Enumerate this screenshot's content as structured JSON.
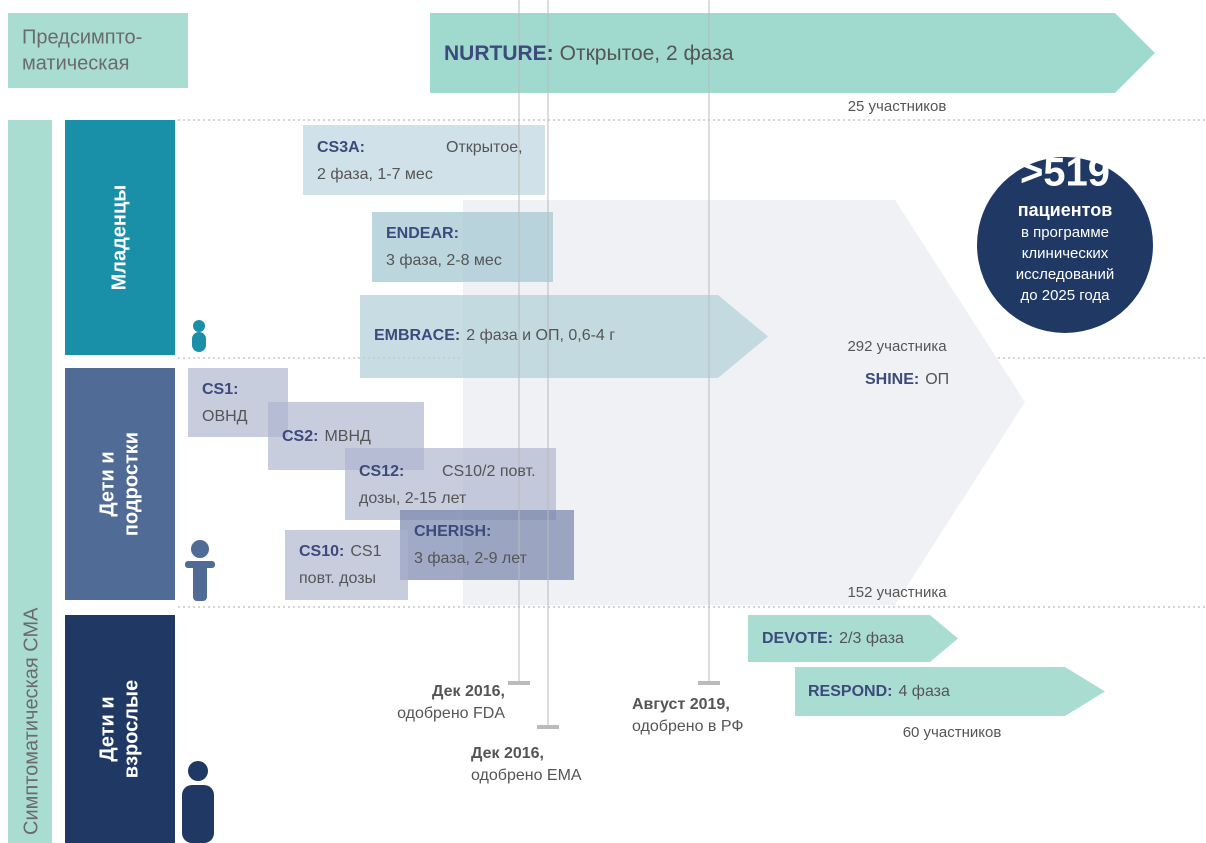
{
  "presymptomatic": {
    "lines": [
      "Предсимпто-",
      "матическая"
    ]
  },
  "symptomatic": "Симптоматическая СМА",
  "groups": [
    {
      "lines": [
        "Младенцы"
      ]
    },
    {
      "lines": [
        "Дети и",
        "подростки"
      ]
    },
    {
      "lines": [
        "Дети и",
        "взрослые"
      ]
    }
  ],
  "trials": [
    {
      "name": "NURTURE:",
      "text": "Открытое, 2 фаза"
    },
    {
      "name": "CS3A:",
      "text": "Открытое,",
      "lines": [
        "2 фаза, 1-7 мес"
      ]
    },
    {
      "name": "ENDEAR:",
      "lines": [
        "3 фаза, 2-8 мес"
      ]
    },
    {
      "name": "EMBRACE:",
      "text": "2 фаза и ОП, 0,6-4 г"
    },
    {
      "name": "SHINE:",
      "text": "ОП"
    },
    {
      "name": "CS1:",
      "lines": [
        "ОВНД"
      ]
    },
    {
      "name": "CS2:",
      "text": "МВНД"
    },
    {
      "name": "CS12:",
      "text": "CS10/2 повт.",
      "lines": [
        "дозы, 2-15 лет"
      ]
    },
    {
      "name": "CHERISH:",
      "lines": [
        "3 фаза, 2-9 лет"
      ]
    },
    {
      "name": "CS10:",
      "text": "CS1",
      "lines": [
        "повт. дозы"
      ]
    },
    {
      "name": "DEVOTE:",
      "text": "2/3 фаза"
    },
    {
      "name": "RESPOND:",
      "text": "4 фаза"
    }
  ],
  "counts": [
    "25 участников",
    "292 участника",
    "152 участника",
    "60 участников"
  ],
  "approvals": [
    {
      "date": "Дек 2016,",
      "text": "одобрено FDA"
    },
    {
      "date": "Дек 2016,",
      "text": "одобрено EMA"
    },
    {
      "date": "Август 2019,",
      "text": "одобрено в РФ"
    }
  ],
  "badge": {
    "number": ">519",
    "title": "пациентов",
    "lines": [
      "в программе",
      "клинических",
      "исследований",
      "до 2025 года"
    ]
  }
}
